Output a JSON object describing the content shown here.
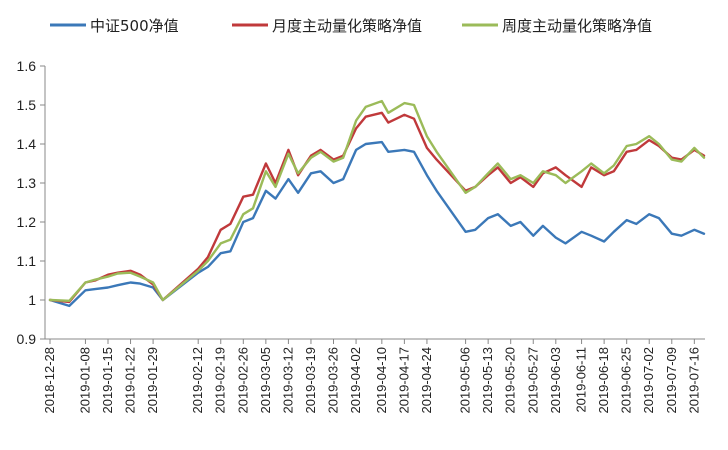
{
  "chart_data": {
    "type": "line",
    "title": "",
    "xlabel": "",
    "ylabel": "",
    "ylim": [
      0.9,
      1.6
    ],
    "yticks": [
      "0.9",
      "1",
      "1.1",
      "1.2",
      "1.3",
      "1.4",
      "1.5",
      "1.6"
    ],
    "grid": false,
    "legend_position": "top",
    "x_tick_labels": [
      "2018-12-28",
      "2019-01-08",
      "2019-01-15",
      "2019-01-22",
      "2019-01-29",
      "2019-02-12",
      "2019-02-19",
      "2019-02-26",
      "2019-03-05",
      "2019-03-12",
      "2019-03-19",
      "2019-03-26",
      "2019-04-02",
      "2019-04-10",
      "2019-04-17",
      "2019-04-24",
      "2019-05-06",
      "2019-05-13",
      "2019-05-20",
      "2019-05-27",
      "2019-06-03",
      "2019-06-11",
      "2019-06-18",
      "2019-06-25",
      "2019-07-02",
      "2019-07-09",
      "2019-07-16"
    ],
    "x_tick_dates": [
      "2018-12-28",
      "2019-01-08",
      "2019-01-15",
      "2019-01-22",
      "2019-01-29",
      "2019-02-12",
      "2019-02-19",
      "2019-02-26",
      "2019-03-05",
      "2019-03-12",
      "2019-03-19",
      "2019-03-26",
      "2019-04-02",
      "2019-04-10",
      "2019-04-17",
      "2019-04-24",
      "2019-05-06",
      "2019-05-13",
      "2019-05-20",
      "2019-05-27",
      "2019-06-03",
      "2019-06-11",
      "2019-06-18",
      "2019-06-25",
      "2019-07-02",
      "2019-07-09",
      "2019-07-16"
    ],
    "series": [
      {
        "name": "中证500净值",
        "color": "#3b78b8",
        "x": [
          "2018-12-28",
          "2019-01-03",
          "2019-01-08",
          "2019-01-11",
          "2019-01-15",
          "2019-01-18",
          "2019-01-22",
          "2019-01-25",
          "2019-01-29",
          "2019-02-01",
          "2019-02-12",
          "2019-02-15",
          "2019-02-19",
          "2019-02-22",
          "2019-02-26",
          "2019-03-01",
          "2019-03-05",
          "2019-03-08",
          "2019-03-12",
          "2019-03-15",
          "2019-03-19",
          "2019-03-22",
          "2019-03-26",
          "2019-03-29",
          "2019-04-02",
          "2019-04-05",
          "2019-04-10",
          "2019-04-12",
          "2019-04-17",
          "2019-04-20",
          "2019-04-24",
          "2019-04-27",
          "2019-05-06",
          "2019-05-09",
          "2019-05-13",
          "2019-05-16",
          "2019-05-20",
          "2019-05-23",
          "2019-05-27",
          "2019-05-30",
          "2019-06-03",
          "2019-06-06",
          "2019-06-11",
          "2019-06-14",
          "2019-06-18",
          "2019-06-21",
          "2019-06-25",
          "2019-06-28",
          "2019-07-02",
          "2019-07-05",
          "2019-07-09",
          "2019-07-12",
          "2019-07-16",
          "2019-07-19"
        ],
        "y": [
          1.0,
          0.985,
          1.025,
          1.028,
          1.032,
          1.038,
          1.045,
          1.042,
          1.032,
          1.0,
          1.07,
          1.085,
          1.12,
          1.125,
          1.2,
          1.21,
          1.28,
          1.26,
          1.31,
          1.275,
          1.325,
          1.33,
          1.3,
          1.31,
          1.385,
          1.4,
          1.405,
          1.38,
          1.385,
          1.38,
          1.32,
          1.28,
          1.175,
          1.18,
          1.21,
          1.22,
          1.19,
          1.2,
          1.165,
          1.19,
          1.16,
          1.145,
          1.175,
          1.165,
          1.15,
          1.175,
          1.205,
          1.195,
          1.22,
          1.21,
          1.17,
          1.165,
          1.18,
          1.17
        ]
      },
      {
        "name": "月度主动量化策略净值",
        "color": "#c0393b",
        "x": [
          "2018-12-28",
          "2019-01-03",
          "2019-01-08",
          "2019-01-11",
          "2019-01-15",
          "2019-01-18",
          "2019-01-22",
          "2019-01-25",
          "2019-01-29",
          "2019-02-01",
          "2019-02-12",
          "2019-02-15",
          "2019-02-19",
          "2019-02-22",
          "2019-02-26",
          "2019-03-01",
          "2019-03-05",
          "2019-03-08",
          "2019-03-12",
          "2019-03-15",
          "2019-03-19",
          "2019-03-22",
          "2019-03-26",
          "2019-03-29",
          "2019-04-02",
          "2019-04-05",
          "2019-04-10",
          "2019-04-12",
          "2019-04-17",
          "2019-04-20",
          "2019-04-24",
          "2019-04-27",
          "2019-05-06",
          "2019-05-09",
          "2019-05-13",
          "2019-05-16",
          "2019-05-20",
          "2019-05-23",
          "2019-05-27",
          "2019-05-30",
          "2019-06-03",
          "2019-06-06",
          "2019-06-11",
          "2019-06-14",
          "2019-06-18",
          "2019-06-21",
          "2019-06-25",
          "2019-06-28",
          "2019-07-02",
          "2019-07-05",
          "2019-07-09",
          "2019-07-12",
          "2019-07-16",
          "2019-07-19"
        ],
        "y": [
          1.0,
          0.995,
          1.045,
          1.05,
          1.065,
          1.07,
          1.075,
          1.065,
          1.04,
          1.0,
          1.08,
          1.11,
          1.18,
          1.195,
          1.265,
          1.27,
          1.35,
          1.3,
          1.385,
          1.32,
          1.37,
          1.385,
          1.36,
          1.37,
          1.44,
          1.47,
          1.48,
          1.455,
          1.475,
          1.465,
          1.39,
          1.36,
          1.28,
          1.29,
          1.32,
          1.34,
          1.3,
          1.315,
          1.29,
          1.325,
          1.34,
          1.32,
          1.29,
          1.34,
          1.32,
          1.33,
          1.38,
          1.385,
          1.41,
          1.395,
          1.365,
          1.36,
          1.385,
          1.37
        ]
      },
      {
        "name": "周度主动量化策略净值",
        "color": "#9bbb59",
        "x": [
          "2018-12-28",
          "2019-01-03",
          "2019-01-08",
          "2019-01-11",
          "2019-01-15",
          "2019-01-18",
          "2019-01-22",
          "2019-01-25",
          "2019-01-29",
          "2019-02-01",
          "2019-02-12",
          "2019-02-15",
          "2019-02-19",
          "2019-02-22",
          "2019-02-26",
          "2019-03-01",
          "2019-03-05",
          "2019-03-08",
          "2019-03-12",
          "2019-03-15",
          "2019-03-19",
          "2019-03-22",
          "2019-03-26",
          "2019-03-29",
          "2019-04-02",
          "2019-04-05",
          "2019-04-10",
          "2019-04-12",
          "2019-04-17",
          "2019-04-20",
          "2019-04-24",
          "2019-04-27",
          "2019-05-06",
          "2019-05-09",
          "2019-05-13",
          "2019-05-16",
          "2019-05-20",
          "2019-05-23",
          "2019-05-27",
          "2019-05-30",
          "2019-06-03",
          "2019-06-06",
          "2019-06-11",
          "2019-06-14",
          "2019-06-18",
          "2019-06-21",
          "2019-06-25",
          "2019-06-28",
          "2019-07-02",
          "2019-07-05",
          "2019-07-09",
          "2019-07-12",
          "2019-07-16",
          "2019-07-19"
        ],
        "y": [
          1.0,
          0.998,
          1.045,
          1.052,
          1.06,
          1.068,
          1.07,
          1.06,
          1.045,
          1.0,
          1.075,
          1.1,
          1.145,
          1.155,
          1.22,
          1.235,
          1.33,
          1.29,
          1.375,
          1.325,
          1.365,
          1.38,
          1.355,
          1.365,
          1.46,
          1.495,
          1.51,
          1.48,
          1.505,
          1.5,
          1.42,
          1.38,
          1.275,
          1.29,
          1.325,
          1.35,
          1.31,
          1.32,
          1.3,
          1.33,
          1.32,
          1.3,
          1.33,
          1.35,
          1.325,
          1.345,
          1.395,
          1.4,
          1.42,
          1.4,
          1.36,
          1.355,
          1.39,
          1.365
        ]
      }
    ]
  }
}
